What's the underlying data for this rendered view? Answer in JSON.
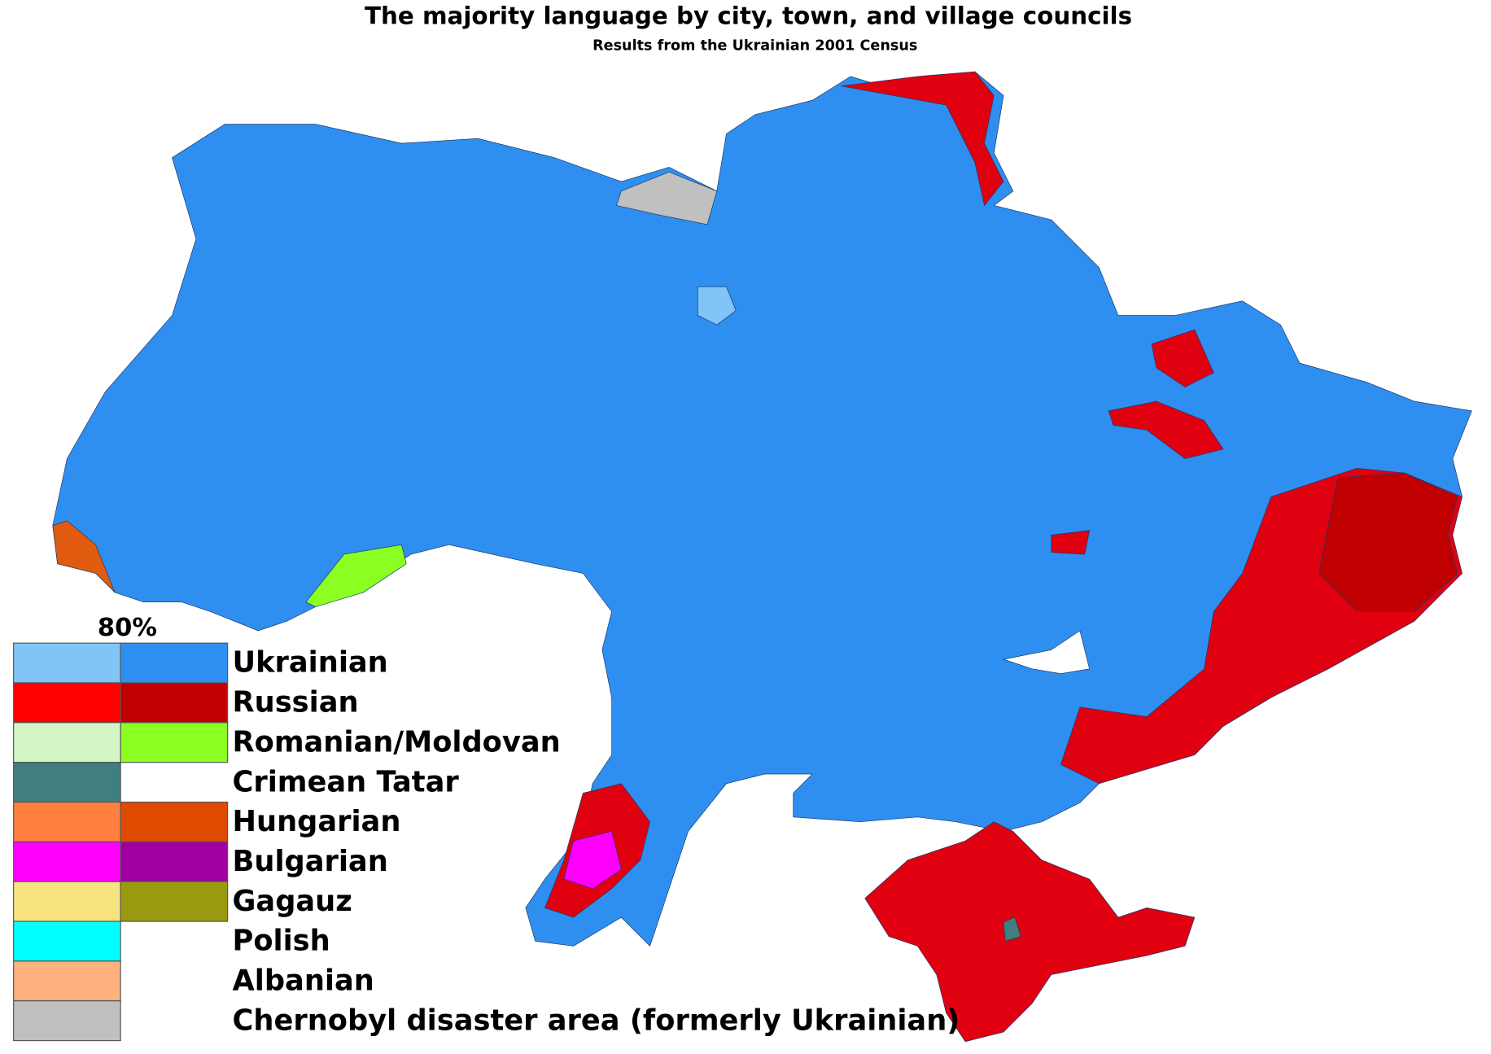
{
  "header": {
    "title": "The majority language by city, town, and village councils",
    "subtitle": "Results from the Ukrainian 2001 Census"
  },
  "legend": {
    "threshold_label": "80%",
    "items": [
      {
        "label": "Ukrainian",
        "colors": [
          "#80c4f8",
          "#2f8ff0"
        ]
      },
      {
        "label": "Russian",
        "colors": [
          "#ff0000",
          "#c00000"
        ]
      },
      {
        "label": "Romanian/Moldovan",
        "colors": [
          "#d4f5c6",
          "#8cff22"
        ]
      },
      {
        "label": "Crimean Tatar",
        "colors": [
          "#3f7f7f"
        ]
      },
      {
        "label": "Hungarian",
        "colors": [
          "#ff7f3f",
          "#e04a00"
        ]
      },
      {
        "label": "Bulgarian",
        "colors": [
          "#ff00ff",
          "#a000a0"
        ]
      },
      {
        "label": "Gagauz",
        "colors": [
          "#f7e37f",
          "#9a9a10"
        ]
      },
      {
        "label": "Polish",
        "colors": [
          "#00ffff"
        ]
      },
      {
        "label": "Albanian",
        "colors": [
          "#ffb07f"
        ]
      },
      {
        "label": "Chernobyl disaster area (formerly Ukrainian)",
        "colors": [
          "#c0c0c0"
        ]
      }
    ]
  }
}
